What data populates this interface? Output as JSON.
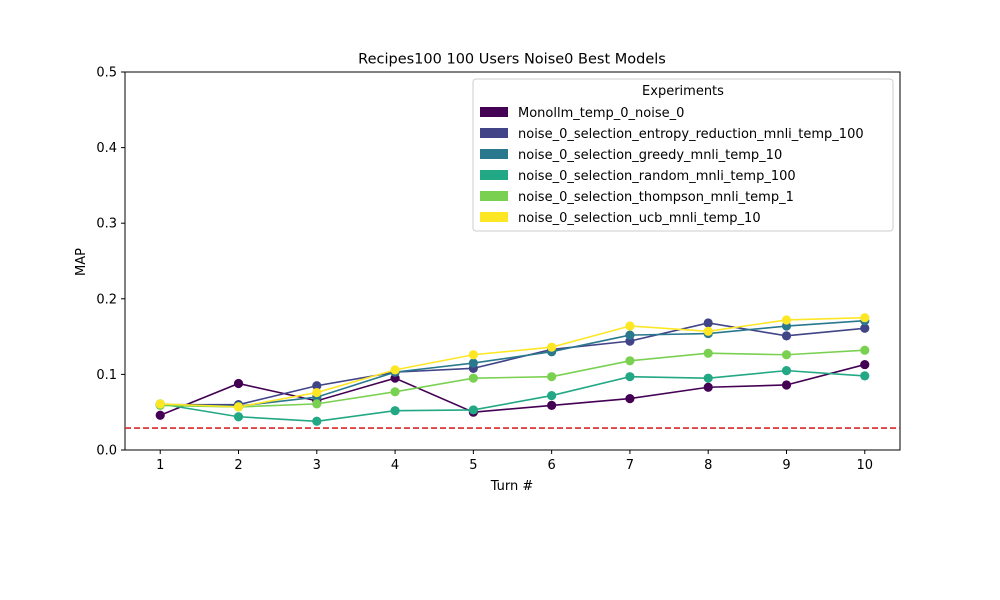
{
  "chart_data": {
    "type": "line",
    "title": "Recipes100 100 Users Noise0 Best Models",
    "xlabel": "Turn #",
    "ylabel": "MAP",
    "x": [
      1,
      2,
      3,
      4,
      5,
      6,
      7,
      8,
      9,
      10
    ],
    "xlim": [
      0.55,
      10.45
    ],
    "ylim": [
      0.0,
      0.5
    ],
    "yticks": [
      0.0,
      0.1,
      0.2,
      0.3,
      0.4,
      0.5
    ],
    "ytick_labels": [
      "0.0",
      "0.1",
      "0.2",
      "0.3",
      "0.4",
      "0.5"
    ],
    "xticks": [
      1,
      2,
      3,
      4,
      5,
      6,
      7,
      8,
      9,
      10
    ],
    "xtick_labels": [
      "1",
      "2",
      "3",
      "4",
      "5",
      "6",
      "7",
      "8",
      "9",
      "10"
    ],
    "grid": false,
    "legend": {
      "title": "Experiments",
      "placement": "top-right"
    },
    "reference_line": {
      "y": 0.029,
      "color": "#d62728",
      "style": "dashed"
    },
    "series": [
      {
        "name": "Monollm_temp_0_noise_0",
        "color": "#440154",
        "values": [
          0.046,
          0.088,
          0.065,
          0.095,
          0.05,
          0.059,
          0.068,
          0.083,
          0.086,
          0.113
        ]
      },
      {
        "name": "noise_0_selection_entropy_reduction_mnli_temp_100",
        "color": "#414487",
        "values": [
          0.06,
          0.06,
          0.085,
          0.103,
          0.108,
          0.133,
          0.144,
          0.168,
          0.151,
          0.161
        ]
      },
      {
        "name": "noise_0_selection_greedy_mnli_temp_10",
        "color": "#2a788e",
        "values": [
          0.06,
          0.058,
          0.07,
          0.103,
          0.115,
          0.13,
          0.152,
          0.154,
          0.164,
          0.171
        ]
      },
      {
        "name": "noise_0_selection_random_mnli_temp_100",
        "color": "#22a884",
        "values": [
          0.061,
          0.044,
          0.038,
          0.052,
          0.053,
          0.072,
          0.097,
          0.095,
          0.105,
          0.098
        ]
      },
      {
        "name": "noise_0_selection_thompson_mnli_temp_1",
        "color": "#7ad151",
        "values": [
          0.059,
          0.057,
          0.061,
          0.077,
          0.095,
          0.097,
          0.118,
          0.128,
          0.126,
          0.132
        ]
      },
      {
        "name": "noise_0_selection_ucb_mnli_temp_10",
        "color": "#fde725",
        "values": [
          0.061,
          0.057,
          0.076,
          0.106,
          0.126,
          0.136,
          0.164,
          0.157,
          0.172,
          0.175
        ]
      }
    ]
  }
}
